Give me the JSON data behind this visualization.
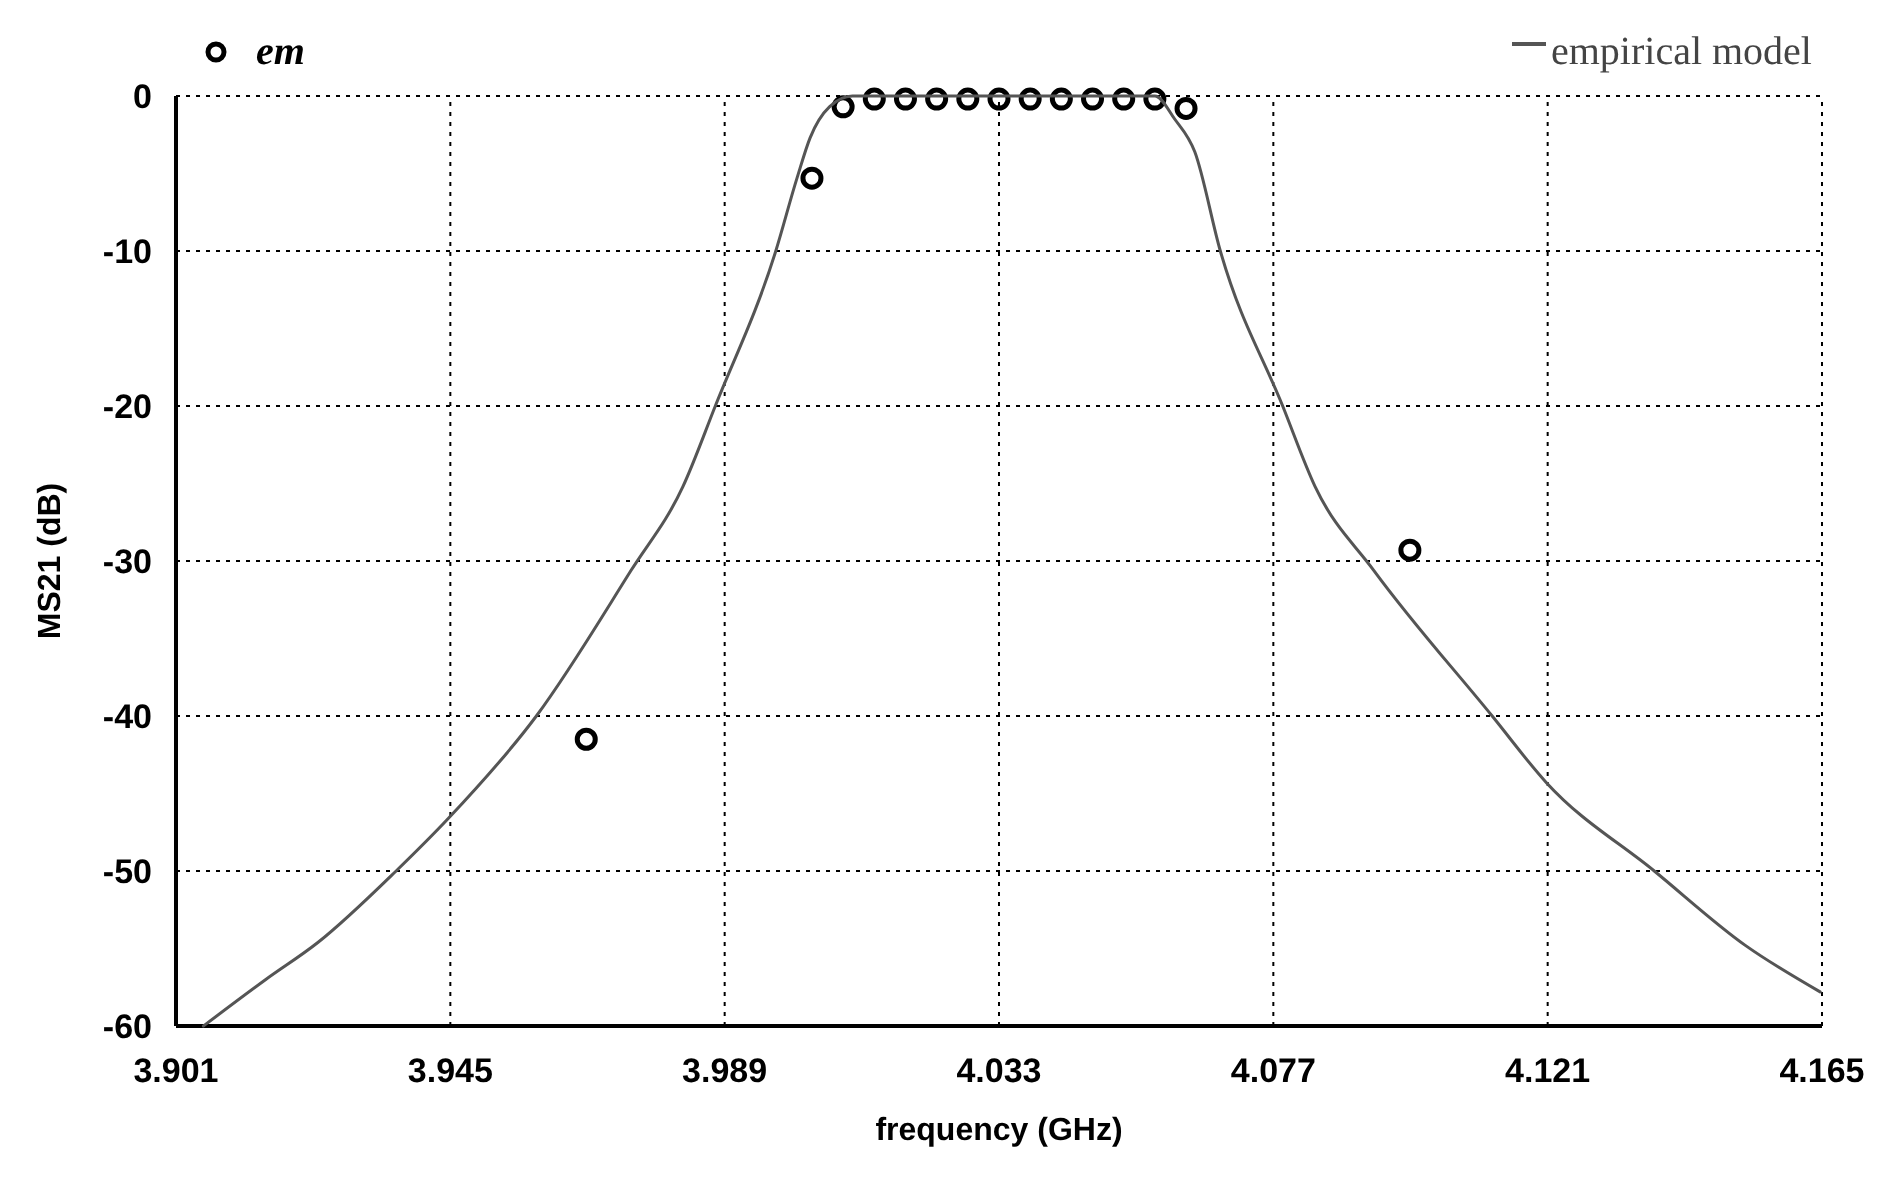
{
  "chart_data": {
    "type": "line",
    "xlabel": "frequency (GHz)",
    "ylabel": "MS21 (dB)",
    "xlim": [
      3.901,
      4.165
    ],
    "ylim": [
      -60,
      0
    ],
    "xticks": [
      3.901,
      3.945,
      3.989,
      4.033,
      4.077,
      4.121,
      4.165
    ],
    "yticks": [
      -60,
      -50,
      -40,
      -30,
      -20,
      -10,
      0
    ],
    "grid": true,
    "legend": "top",
    "series": [
      {
        "name": "em",
        "type": "scatter",
        "marker": "circle",
        "color": "#000000",
        "x": [
          3.9668,
          4.003,
          4.008,
          4.013,
          4.018,
          4.023,
          4.028,
          4.033,
          4.038,
          4.043,
          4.048,
          4.053,
          4.058,
          4.063,
          4.0989
        ],
        "values": [
          -41.5,
          -5.3,
          -0.7,
          -0.2,
          -0.2,
          -0.2,
          -0.2,
          -0.2,
          -0.2,
          -0.2,
          -0.2,
          -0.2,
          -0.2,
          -0.8,
          -29.3
        ]
      },
      {
        "name": "empirical model",
        "marker": "none",
        "line_style": "solid",
        "color": "#555555",
        "x": [
          3.9054,
          3.9154,
          3.9238,
          3.9363,
          3.9447,
          3.9588,
          3.974,
          3.9823,
          3.9875,
          3.9972,
          4.0006,
          4.0027,
          4.0058,
          4.0095,
          4.033,
          4.058,
          4.0612,
          4.0644,
          4.0685,
          4.0785,
          4.0837,
          4.0931,
          4.1121,
          4.1208,
          4.1381,
          4.1527,
          4.1647
        ],
        "values": [
          -60,
          -57.0,
          -54.6,
          -50,
          -46.6,
          -40,
          -30.6,
          -25.2,
          -20,
          -10,
          -5.3,
          -2.7,
          -0.7,
          0,
          0,
          0,
          -1.5,
          -3.6,
          -10,
          -20,
          -25.2,
          -30.6,
          -40,
          -44.3,
          -50,
          -54.8,
          -57.8
        ]
      }
    ]
  }
}
